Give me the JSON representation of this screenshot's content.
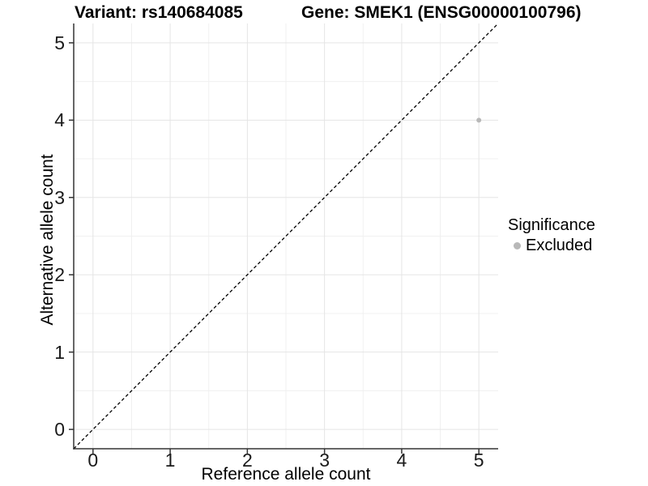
{
  "window": {
    "title": "Allele count plot"
  },
  "header": {
    "variant_title": "Variant: rs140684085",
    "gene_title": "Gene: SMEK1 (ENSG00000100796)"
  },
  "chart_data": {
    "type": "scatter",
    "title": "Variant: rs140684085   Gene: SMEK1 (ENSG00000100796)",
    "xlabel": "Reference allele count",
    "ylabel": "Alternative allele count",
    "xlim": [
      -0.25,
      5.25
    ],
    "ylim": [
      -0.25,
      5.25
    ],
    "x_ticks": [
      0,
      1,
      2,
      3,
      4,
      5
    ],
    "y_ticks": [
      0,
      1,
      2,
      3,
      4,
      5
    ],
    "minor_ticks": [
      0.5,
      1.5,
      2.5,
      3.5,
      4.5
    ],
    "grid": true,
    "points": [
      {
        "x": 5,
        "y": 4,
        "significance": "Excluded"
      }
    ],
    "reference_line": {
      "kind": "identity y=x",
      "style": "dashed",
      "color": "#000000"
    },
    "legend": {
      "title": "Significance",
      "position": "right",
      "entries": [
        {
          "label": "Excluded",
          "color": "#b8b8b8"
        }
      ]
    },
    "colors": {
      "point": "#b8b8b8",
      "grid_major": "#e5e5e5",
      "grid_minor": "#f0f0f0",
      "axis_line": "#333333",
      "background": "#ffffff"
    }
  }
}
